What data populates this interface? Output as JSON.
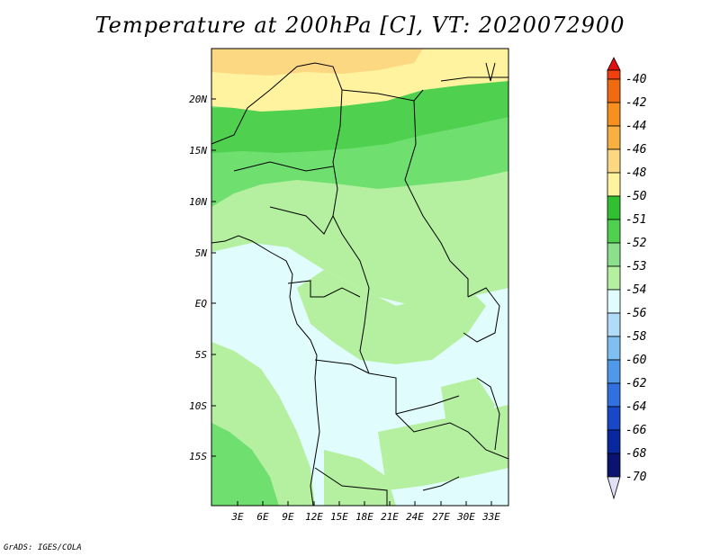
{
  "title": "Temperature at 200hPa [C], VT: 2020072900",
  "credit": "GrADS: IGES/COLA",
  "map": {
    "lat_labels": [
      "20N",
      "15N",
      "10N",
      "5N",
      "EQ",
      "5S",
      "10S",
      "15S"
    ],
    "lon_labels": [
      "3E",
      "6E",
      "9E",
      "12E",
      "15E",
      "18E",
      "21E",
      "24E",
      "27E",
      "30E",
      "33E"
    ],
    "fill_colors": {
      "lt_minus50": "#fff3a0",
      "lt_minus51": "#4fd04f",
      "lt_minus52": "#6fe06f",
      "lt_minus53": "#b4f0a0",
      "lt_minus54": "#e0fcfc",
      "gt_minus50": "#fcd883"
    }
  },
  "colorbar": {
    "labels": [
      "-40",
      "-42",
      "-44",
      "-46",
      "-48",
      "-50",
      "-51",
      "-52",
      "-53",
      "-54",
      "-56",
      "-58",
      "-60",
      "-62",
      "-64",
      "-66",
      "-68",
      "-70"
    ],
    "colors": [
      "#e01010",
      "#f04010",
      "#f06a10",
      "#f89020",
      "#f8b040",
      "#fcd883",
      "#fff3a0",
      "#30c030",
      "#4fd04f",
      "#8ce08c",
      "#b4f0a0",
      "#e0fcfc",
      "#b0dcf8",
      "#80c0f0",
      "#5098e8",
      "#3070e0",
      "#1848c8",
      "#0828a0",
      "#0a1470",
      "#e0e0f8"
    ]
  }
}
